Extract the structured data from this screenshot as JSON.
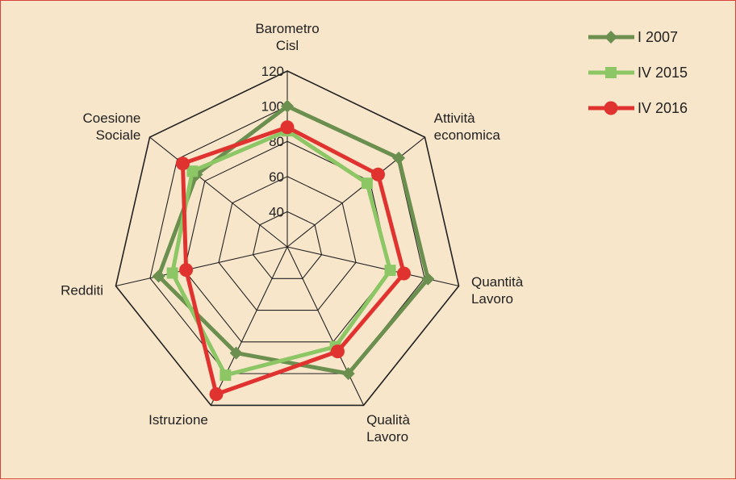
{
  "chart_data": {
    "type": "radar",
    "categories": [
      [
        "Barometro",
        "Cisl"
      ],
      [
        "Attività",
        "economica"
      ],
      [
        "Quantità",
        "Lavoro"
      ],
      [
        "Qualità",
        "Lavoro"
      ],
      [
        "Istruzione"
      ],
      [
        "Redditi"
      ],
      [
        "Coesione",
        "Sociale"
      ]
    ],
    "radial_ticks": [
      "40",
      "60",
      "80",
      "100",
      "120"
    ],
    "radial_range": [
      20,
      120
    ],
    "grid_levels": [
      40,
      60,
      80,
      100,
      120
    ],
    "series": [
      {
        "name": "I 2007",
        "color": "#6b8f4e",
        "marker": "diamond",
        "values": [
          100,
          101,
          102,
          100,
          87,
          95,
          86
        ]
      },
      {
        "name": "IV 2015",
        "color": "#8cc665",
        "marker": "square",
        "values": [
          86,
          78,
          80,
          83,
          101,
          87,
          89
        ]
      },
      {
        "name": "IV 2016",
        "color": "#e0322f",
        "marker": "circle",
        "values": [
          88,
          86,
          88,
          86,
          113,
          79,
          96
        ]
      }
    ],
    "legend_position": "top-right"
  }
}
